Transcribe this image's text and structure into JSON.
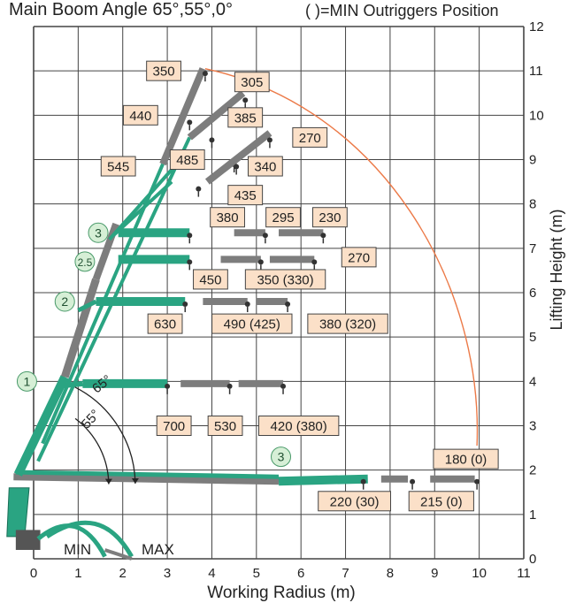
{
  "header": {
    "title": "Main Boom Angle 65°,55°,0°",
    "legend_note": "(   )=MIN Outriggers Position"
  },
  "axes": {
    "xlabel": "Working Radius (m)",
    "ylabel": "Lifting Height (m)",
    "x_ticks": [
      "0",
      "1",
      "2",
      "3",
      "4",
      "5",
      "6",
      "7",
      "8",
      "9",
      "10",
      "11"
    ],
    "y_ticks": [
      "0",
      "1",
      "2",
      "3",
      "4",
      "5",
      "6",
      "7",
      "8",
      "9",
      "10",
      "11",
      "12"
    ],
    "xlim": [
      0,
      11
    ],
    "ylim": [
      0,
      12
    ]
  },
  "outrigger_labels": {
    "min": "MIN",
    "max": "MAX"
  },
  "angle_labels": [
    {
      "text": "65°",
      "angle": 65
    },
    {
      "text": "55°",
      "angle": 55
    }
  ],
  "boom_section_markers": [
    {
      "text": "1",
      "x": -0.15,
      "y": 4.0
    },
    {
      "text": "2",
      "x": 0.7,
      "y": 5.8
    },
    {
      "text": "2.5",
      "x": 1.15,
      "y": 6.7
    },
    {
      "text": "3",
      "x": 1.45,
      "y": 7.35
    },
    {
      "text": "3",
      "x": 5.55,
      "y": 2.3
    }
  ],
  "capacity_labels": [
    {
      "text": "350",
      "x": 2.92,
      "y": 11.0
    },
    {
      "text": "305",
      "x": 4.9,
      "y": 10.75
    },
    {
      "text": "440",
      "x": 2.4,
      "y": 10.0
    },
    {
      "text": "385",
      "x": 4.75,
      "y": 9.95
    },
    {
      "text": "270",
      "x": 6.2,
      "y": 9.5
    },
    {
      "text": "545",
      "x": 1.9,
      "y": 8.85
    },
    {
      "text": "485",
      "x": 3.45,
      "y": 9.0
    },
    {
      "text": "340",
      "x": 5.2,
      "y": 8.85
    },
    {
      "text": "435",
      "x": 4.75,
      "y": 8.2
    },
    {
      "text": "380",
      "x": 4.35,
      "y": 7.7
    },
    {
      "text": "295",
      "x": 5.6,
      "y": 7.7
    },
    {
      "text": "230",
      "x": 6.65,
      "y": 7.7
    },
    {
      "text": "450",
      "x": 3.97,
      "y": 6.3
    },
    {
      "text": "350 (330)",
      "x": 5.65,
      "y": 6.3
    },
    {
      "text": "270",
      "x": 7.3,
      "y": 6.8
    },
    {
      "text": "630",
      "x": 2.95,
      "y": 5.3
    },
    {
      "text": "490 (425)",
      "x": 4.9,
      "y": 5.3
    },
    {
      "text": "380 (320)",
      "x": 7.05,
      "y": 5.3
    },
    {
      "text": "700",
      "x": 3.15,
      "y": 3.0
    },
    {
      "text": "530",
      "x": 4.3,
      "y": 3.0
    },
    {
      "text": "420 (380)",
      "x": 5.95,
      "y": 3.0
    },
    {
      "text": "180 (0)",
      "x": 9.7,
      "y": 2.25
    },
    {
      "text": "220 (30)",
      "x": 7.2,
      "y": 1.3
    },
    {
      "text": "215 (0)",
      "x": 9.15,
      "y": 1.3
    }
  ],
  "colors": {
    "boom_green": "#2aa482",
    "boom_grey": "#7d7d7d",
    "label_fill": "#fbe0c8",
    "label_stroke": "#444444",
    "envelope": "#ec7a48",
    "marker_fill": "#d6efd6",
    "grid": "#444444"
  }
}
